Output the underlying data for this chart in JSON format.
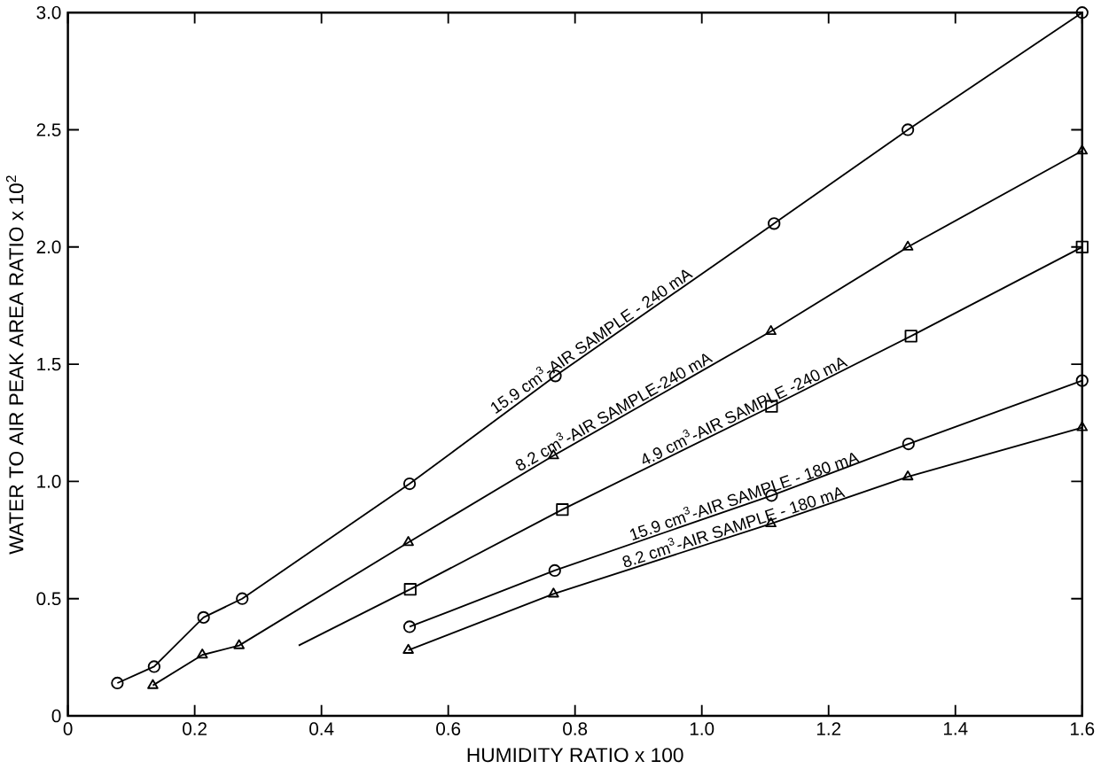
{
  "chart_data": {
    "type": "line",
    "xlabel": "HUMIDITY  RATIO x 100",
    "ylabel": "WATER TO AIR PEAK AREA RATIO x 10$^{2}$",
    "xlim": [
      0,
      1.6
    ],
    "ylim": [
      0,
      3.0
    ],
    "xticks": [
      0,
      0.2,
      0.4,
      0.6,
      0.8,
      {
        "value": 1,
        "label": "1.0"
      },
      1.2,
      1.4,
      1.6
    ],
    "yticks": [
      0,
      0.5,
      {
        "value": 1,
        "label": "1.0"
      },
      1.5,
      {
        "value": 2,
        "label": "2.0"
      },
      2.5,
      {
        "value": 3,
        "label": "3.0"
      }
    ],
    "grid": false,
    "legend": false,
    "line_style": "solid",
    "series": [
      {
        "name": "15.9 cm$^{3}$-AIR SAMPLE - 240 mA",
        "color": "#000000",
        "marker": "circle",
        "x": [
          0.078,
          0.136,
          0.214,
          0.275,
          0.539,
          0.769,
          1.114,
          1.325,
          1.6
        ],
        "values": [
          0.14,
          0.21,
          0.42,
          0.5,
          0.99,
          1.45,
          2.1,
          2.5,
          3.0
        ]
      },
      {
        "name": "8.2 cm$^{3}$-AIR SAMPLE-240 mA",
        "color": "#000000",
        "marker": "triangle",
        "x": [
          0.134,
          0.212,
          0.27,
          0.537,
          0.766,
          1.109,
          1.325,
          1.6
        ],
        "values": [
          0.13,
          0.26,
          0.3,
          0.74,
          1.11,
          1.64,
          2.0,
          2.41
        ]
      },
      {
        "type": "line",
        "color": "#000000",
        "x": [
          0.364,
          0.54
        ],
        "values": [
          0.3,
          0.54
        ]
      },
      {
        "name": "4.9 cm$^{3}$-AIR SAMPLE -240 mA",
        "color": "#000000",
        "marker": "square",
        "x": [
          0.54,
          0.78,
          1.11,
          1.33,
          1.6
        ],
        "values": [
          0.54,
          0.88,
          1.32,
          1.62,
          2.0
        ]
      },
      {
        "name": "15.9 cm$^{3}$-AIR SAMPLE - 180 mA",
        "color": "#000000",
        "marker": "circle",
        "x": [
          0.539,
          0.768,
          1.11,
          1.326,
          1.6
        ],
        "values": [
          0.38,
          0.62,
          0.94,
          1.16,
          1.43
        ]
      },
      {
        "name": "8.2 cm$^{3}$-AIR SAMPLE - 180 mA",
        "color": "#000000",
        "marker": "triangle",
        "x": [
          0.537,
          0.766,
          1.109,
          1.325,
          1.6
        ],
        "values": [
          0.28,
          0.52,
          0.82,
          1.02,
          1.23
        ]
      }
    ]
  }
}
